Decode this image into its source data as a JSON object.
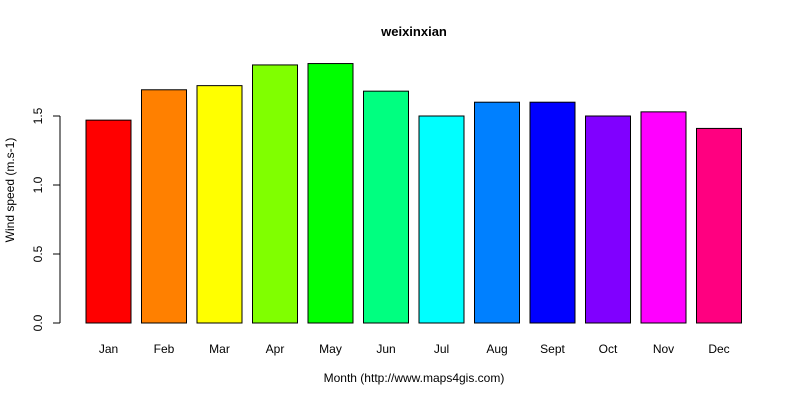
{
  "chart_data": {
    "type": "bar",
    "title": "weixinxian",
    "xlabel": "Month (http://www.maps4gis.com)",
    "ylabel": "Wind speed (m.s-1)",
    "categories": [
      "Jan",
      "Feb",
      "Mar",
      "Apr",
      "May",
      "Jun",
      "Jul",
      "Aug",
      "Sept",
      "Oct",
      "Nov",
      "Dec"
    ],
    "values": [
      1.47,
      1.69,
      1.72,
      1.87,
      1.88,
      1.68,
      1.5,
      1.6,
      1.6,
      1.5,
      1.53,
      1.41
    ],
    "colors": [
      "#ff0000",
      "#ff8000",
      "#ffff00",
      "#80ff00",
      "#00ff00",
      "#00ff80",
      "#00ffff",
      "#0080ff",
      "#0000ff",
      "#8000ff",
      "#ff00ff",
      "#ff0080"
    ],
    "yticks": [
      "0.0",
      "0.5",
      "1.0",
      "1.5"
    ],
    "ylim": [
      0,
      1.88
    ],
    "grid": false,
    "legend": "none"
  }
}
